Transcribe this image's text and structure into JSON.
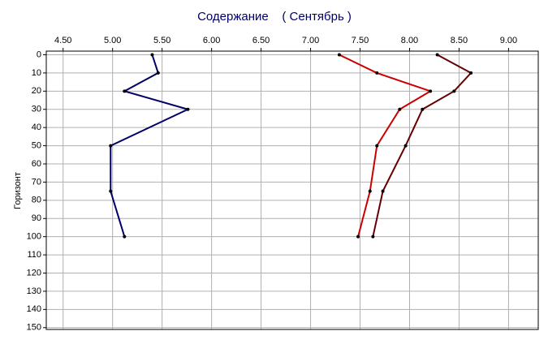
{
  "chart_data": {
    "type": "line",
    "title": "Содержание    ( Сентябрь )",
    "y_label": "Горизонт",
    "y": [
      0,
      10,
      20,
      30,
      50,
      75,
      100
    ],
    "series": [
      {
        "color": "#000066",
        "values": [
          5.4,
          5.46,
          5.12,
          5.76,
          4.98,
          4.98,
          5.12
        ]
      },
      {
        "color": "#cc0000",
        "values": [
          7.29,
          7.67,
          8.21,
          7.9,
          7.67,
          7.6,
          7.48
        ]
      },
      {
        "color": "#660000",
        "values": [
          8.28,
          8.62,
          8.45,
          8.13,
          7.96,
          7.73,
          7.63
        ]
      }
    ],
    "xlim": [
      4.33,
      9.3
    ],
    "xticks": [
      {
        "value": 4.5,
        "label": "4.50"
      },
      {
        "value": 5,
        "label": "5.00"
      },
      {
        "value": 5.5,
        "label": "5.50"
      },
      {
        "value": 6,
        "label": "6.00"
      },
      {
        "value": 6.5,
        "label": "6.50"
      },
      {
        "value": 7,
        "label": "7.00"
      },
      {
        "value": 7.5,
        "label": "7.50"
      },
      {
        "value": 8,
        "label": "8.00"
      },
      {
        "value": 8.5,
        "label": "8.50"
      },
      {
        "value": 9,
        "label": "9.00"
      }
    ],
    "ylim": [
      -2,
      151
    ],
    "yticks": [
      0,
      10,
      20,
      30,
      40,
      50,
      60,
      70,
      80,
      90,
      100,
      110,
      120,
      130,
      140,
      150
    ],
    "grid": true
  }
}
